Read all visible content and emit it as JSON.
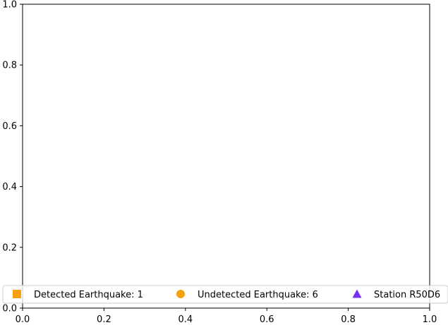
{
  "chart_data": {
    "type": "scatter",
    "title": "",
    "xlabel": "",
    "ylabel": "",
    "xlim": [
      0.0,
      1.0
    ],
    "ylim": [
      0.0,
      1.0
    ],
    "grid": false,
    "x_ticks": [
      "0.0",
      "0.2",
      "0.4",
      "0.6",
      "0.8",
      "1.0"
    ],
    "y_ticks": [
      "0.0",
      "0.2",
      "0.4",
      "0.6",
      "0.8",
      "1.0"
    ],
    "series": [
      {
        "name": "Detected Earthquake: 1",
        "marker": "square",
        "color": "#f5a00f",
        "points": []
      },
      {
        "name": "Undetected Earthquake: 6",
        "marker": "circle",
        "color": "#f5a00f",
        "points": []
      },
      {
        "name": "Station R50D6",
        "marker": "triangle",
        "color": "#7b2ff0",
        "points": []
      }
    ],
    "legend": {
      "placement": "lower-center",
      "columns": 3
    }
  }
}
